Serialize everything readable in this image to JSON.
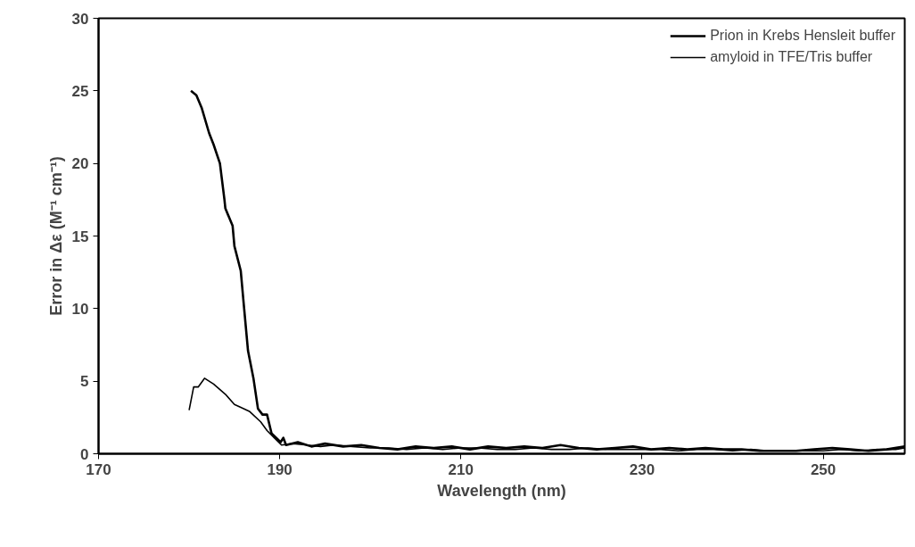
{
  "chart_data": {
    "type": "line",
    "xlabel": "Wavelength (nm)",
    "ylabel": "Error in Δε (M⁻¹ cm⁻¹)",
    "xlim": [
      170,
      259
    ],
    "ylim": [
      0,
      30
    ],
    "xticks": [
      170,
      190,
      210,
      230,
      250
    ],
    "yticks": [
      0,
      5,
      10,
      15,
      20,
      25,
      30
    ],
    "grid": false,
    "legend": "top right",
    "marker": "none",
    "line_style": "solid",
    "series": [
      {
        "name": "Prion in Krebs Hensleit buffer",
        "color": "#000000",
        "x": [
          180.2,
          180.8,
          181.4,
          182.2,
          182.7,
          183.4,
          183.9,
          184.0,
          184.8,
          185.0,
          185.7,
          186.0,
          186.5,
          187.1,
          187.6,
          188.1,
          188.6,
          189.1,
          190.1,
          190.4,
          190.7,
          192,
          193.5,
          195,
          197,
          199,
          201,
          203,
          205,
          207,
          209,
          211,
          213,
          215,
          217,
          219,
          221,
          223,
          225,
          227,
          229,
          231,
          233,
          235,
          237,
          239,
          241,
          243,
          245,
          247,
          249,
          251,
          253,
          255,
          257,
          259
        ],
        "values": [
          25.0,
          24.7,
          23.8,
          22.1,
          21.3,
          20.0,
          17.5,
          16.9,
          15.7,
          14.3,
          12.6,
          10.5,
          7.1,
          5.2,
          3.1,
          2.7,
          2.7,
          1.4,
          0.8,
          1.1,
          0.6,
          0.8,
          0.5,
          0.7,
          0.5,
          0.6,
          0.4,
          0.3,
          0.5,
          0.4,
          0.5,
          0.3,
          0.5,
          0.4,
          0.5,
          0.4,
          0.6,
          0.4,
          0.3,
          0.4,
          0.5,
          0.3,
          0.4,
          0.3,
          0.4,
          0.3,
          0.3,
          0.2,
          0.2,
          0.2,
          0.3,
          0.4,
          0.3,
          0.2,
          0.3,
          0.5
        ]
      },
      {
        "name": "amyloid in TFE/Tris buffer",
        "color": "#000000",
        "x": [
          180.0,
          180.5,
          181.0,
          181.7,
          182.7,
          184.0,
          185.0,
          185.7,
          186.7,
          187.9,
          188.6,
          189.4,
          190.2,
          191.5,
          193,
          194.5,
          196,
          198,
          200,
          202,
          204,
          206,
          208,
          210,
          212,
          214,
          216,
          218,
          220,
          222,
          224,
          226,
          228,
          230,
          232,
          234,
          236,
          238,
          240,
          242,
          244,
          246,
          248,
          250,
          252,
          254,
          256,
          258,
          259
        ],
        "values": [
          3.0,
          4.6,
          4.6,
          5.2,
          4.8,
          4.1,
          3.4,
          3.2,
          2.9,
          2.2,
          1.6,
          1.1,
          0.6,
          0.7,
          0.6,
          0.5,
          0.6,
          0.5,
          0.4,
          0.4,
          0.3,
          0.4,
          0.3,
          0.4,
          0.4,
          0.3,
          0.3,
          0.4,
          0.3,
          0.3,
          0.4,
          0.3,
          0.3,
          0.3,
          0.3,
          0.2,
          0.3,
          0.3,
          0.2,
          0.3,
          0.2,
          0.2,
          0.2,
          0.2,
          0.3,
          0.2,
          0.3,
          0.3,
          0.4
        ]
      }
    ]
  }
}
